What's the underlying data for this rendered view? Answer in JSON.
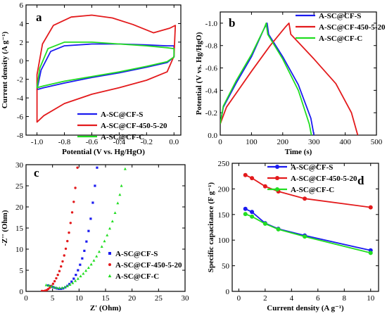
{
  "colors": {
    "blue": "#1b1bf0",
    "red": "#e31a1c",
    "green": "#22dd22",
    "axis": "#000000"
  },
  "chart_data": [
    {
      "panel": "a",
      "type": "line",
      "xlabel": "Potential (V vs. Hg/HgO)",
      "ylabel": "Current density (A g⁻¹)",
      "xlim": [
        -1.08,
        0.05
      ],
      "ylim": [
        -8,
        6
      ],
      "xticks": [
        -1.0,
        -0.8,
        -0.6,
        -0.4,
        -0.2,
        0.0
      ],
      "xtick_labels": [
        "-1.0",
        "-0.8",
        "-0.6",
        "-0.4",
        "-0.2",
        "0.0"
      ],
      "yticks": [
        -8,
        -6,
        -4,
        -2,
        0,
        2,
        4,
        6
      ],
      "ytick_labels": [
        "-8",
        "-6",
        "-4",
        "-2",
        "0",
        "2",
        "4",
        "6"
      ],
      "legend_position": "bottom-right",
      "series": [
        {
          "name": "A-SC@CF-S",
          "color": "#1b1bf0",
          "closed": true,
          "points": [
            [
              -1.0,
              -3.1
            ],
            [
              -0.95,
              -2.9
            ],
            [
              -0.8,
              -2.4
            ],
            [
              -0.6,
              -1.8
            ],
            [
              -0.4,
              -1.3
            ],
            [
              -0.2,
              -0.7
            ],
            [
              -0.05,
              -0.2
            ],
            [
              0.0,
              0.4
            ],
            [
              0.0,
              1.6
            ],
            [
              -0.05,
              1.6
            ],
            [
              -0.2,
              1.7
            ],
            [
              -0.4,
              1.8
            ],
            [
              -0.6,
              1.8
            ],
            [
              -0.8,
              1.6
            ],
            [
              -0.9,
              1.0
            ],
            [
              -0.97,
              -1.0
            ],
            [
              -1.0,
              -3.1
            ]
          ]
        },
        {
          "name": "A-SC@CF-450-5-20",
          "color": "#e31a1c",
          "closed": true,
          "points": [
            [
              -1.0,
              -6.6
            ],
            [
              -0.95,
              -5.9
            ],
            [
              -0.8,
              -4.6
            ],
            [
              -0.6,
              -3.6
            ],
            [
              -0.4,
              -2.9
            ],
            [
              -0.2,
              -2.1
            ],
            [
              -0.05,
              -1.2
            ],
            [
              0.0,
              0.5
            ],
            [
              0.01,
              3.8
            ],
            [
              -0.03,
              3.5
            ],
            [
              -0.15,
              3.0
            ],
            [
              -0.3,
              3.9
            ],
            [
              -0.45,
              4.6
            ],
            [
              -0.6,
              4.9
            ],
            [
              -0.75,
              4.7
            ],
            [
              -0.88,
              3.8
            ],
            [
              -0.96,
              1.8
            ],
            [
              -1.0,
              -1.5
            ],
            [
              -1.0,
              -6.6
            ]
          ]
        },
        {
          "name": "A-SC@CF-C",
          "color": "#22dd22",
          "closed": true,
          "points": [
            [
              -1.0,
              -2.9
            ],
            [
              -0.95,
              -2.7
            ],
            [
              -0.8,
              -2.2
            ],
            [
              -0.6,
              -1.7
            ],
            [
              -0.4,
              -1.2
            ],
            [
              -0.2,
              -0.6
            ],
            [
              -0.05,
              -0.1
            ],
            [
              0.0,
              0.4
            ],
            [
              0.0,
              1.3
            ],
            [
              -0.05,
              1.4
            ],
            [
              -0.2,
              1.6
            ],
            [
              -0.4,
              1.8
            ],
            [
              -0.6,
              2.0
            ],
            [
              -0.8,
              2.0
            ],
            [
              -0.92,
              1.3
            ],
            [
              -0.98,
              -0.8
            ],
            [
              -1.0,
              -2.9
            ]
          ]
        }
      ]
    },
    {
      "panel": "b",
      "type": "line",
      "xlabel": "Time (s)",
      "ylabel": "Potential (V vs. Hg/HgO)",
      "xlim": [
        0,
        500
      ],
      "ylim": [
        0,
        -1.1
      ],
      "xticks": [
        0,
        100,
        200,
        300,
        400,
        500
      ],
      "xtick_labels": [
        "0",
        "100",
        "200",
        "300",
        "400",
        "500"
      ],
      "yticks": [
        0.0,
        -0.2,
        -0.4,
        -0.6,
        -0.8,
        -1.0
      ],
      "ytick_labels": [
        "0.0",
        "-0.2",
        "-0.4",
        "-0.6",
        "-0.8",
        "-1.0"
      ],
      "legend_position": "top-right",
      "series": [
        {
          "name": "A-SC@CF-S",
          "color": "#1b1bf0",
          "points": [
            [
              0,
              -0.1
            ],
            [
              10,
              -0.25
            ],
            [
              50,
              -0.46
            ],
            [
              100,
              -0.7
            ],
            [
              140,
              -0.95
            ],
            [
              150,
              -1.0
            ],
            [
              155,
              -0.9
            ],
            [
              200,
              -0.7
            ],
            [
              250,
              -0.45
            ],
            [
              290,
              -0.15
            ],
            [
              300,
              0.0
            ]
          ]
        },
        {
          "name": "A-SC@CF-450-5-20",
          "color": "#e31a1c",
          "points": [
            [
              0,
              -0.1
            ],
            [
              20,
              -0.25
            ],
            [
              100,
              -0.57
            ],
            [
              160,
              -0.8
            ],
            [
              210,
              -0.97
            ],
            [
              220,
              -1.0
            ],
            [
              226,
              -0.9
            ],
            [
              300,
              -0.68
            ],
            [
              370,
              -0.46
            ],
            [
              420,
              -0.2
            ],
            [
              440,
              0.0
            ]
          ]
        },
        {
          "name": "A-SC@CF-C",
          "color": "#22dd22",
          "points": [
            [
              0,
              -0.1
            ],
            [
              10,
              -0.26
            ],
            [
              50,
              -0.48
            ],
            [
              100,
              -0.72
            ],
            [
              140,
              -0.95
            ],
            [
              147,
              -1.0
            ],
            [
              152,
              -0.9
            ],
            [
              200,
              -0.68
            ],
            [
              250,
              -0.4
            ],
            [
              285,
              -0.1
            ],
            [
              292,
              0.0
            ]
          ]
        }
      ]
    },
    {
      "panel": "c",
      "type": "scatter",
      "xlabel": "Z' (Ohm)",
      "ylabel": "-Z'' (Ohm)",
      "xlim": [
        0,
        30
      ],
      "ylim": [
        0,
        30
      ],
      "xticks": [
        0,
        5,
        10,
        15,
        20,
        25,
        30
      ],
      "xtick_labels": [
        "0",
        "5",
        "10",
        "15",
        "20",
        "25",
        "30"
      ],
      "yticks": [
        0,
        5,
        10,
        15,
        20,
        25,
        30
      ],
      "ytick_labels": [
        "0",
        "5",
        "10",
        "15",
        "20",
        "25",
        "30"
      ],
      "legend_position": "bottom-right",
      "series": [
        {
          "name": "A-SC@CF-S",
          "color": "#1b1bf0",
          "marker": "square",
          "points": [
            [
              4.2,
              1.4
            ],
            [
              4.6,
              1.25
            ],
            [
              5.0,
              1.05
            ],
            [
              5.4,
              0.85
            ],
            [
              5.8,
              0.7
            ],
            [
              6.2,
              0.6
            ],
            [
              6.6,
              0.6
            ],
            [
              7.0,
              0.7
            ],
            [
              7.4,
              0.95
            ],
            [
              7.8,
              1.3
            ],
            [
              8.2,
              1.75
            ],
            [
              8.6,
              2.3
            ],
            [
              9.0,
              3.0
            ],
            [
              9.4,
              3.9
            ],
            [
              9.8,
              5.0
            ],
            [
              10.2,
              6.3
            ],
            [
              10.6,
              7.8
            ],
            [
              11.0,
              9.6
            ],
            [
              11.4,
              11.8
            ],
            [
              11.8,
              14.3
            ],
            [
              12.2,
              17.2
            ],
            [
              12.6,
              21.0
            ],
            [
              13.0,
              25.0
            ],
            [
              13.4,
              29.3
            ]
          ]
        },
        {
          "name": "A-SC@CF-450-5-20",
          "color": "#e31a1c",
          "marker": "circle",
          "points": [
            [
              3.0,
              0.1
            ],
            [
              3.3,
              0.05
            ],
            [
              3.6,
              0.15
            ],
            [
              3.9,
              0.3
            ],
            [
              4.2,
              0.55
            ],
            [
              4.5,
              0.9
            ],
            [
              4.8,
              1.3
            ],
            [
              5.1,
              1.8
            ],
            [
              5.4,
              2.4
            ],
            [
              5.7,
              3.1
            ],
            [
              6.0,
              3.9
            ],
            [
              6.3,
              4.8
            ],
            [
              6.6,
              5.9
            ],
            [
              6.9,
              7.1
            ],
            [
              7.2,
              8.5
            ],
            [
              7.5,
              10.1
            ],
            [
              7.8,
              11.9
            ],
            [
              8.1,
              13.9
            ],
            [
              8.4,
              16.2
            ],
            [
              8.7,
              18.7
            ],
            [
              9.0,
              21.2
            ],
            [
              9.3,
              24.5
            ],
            [
              9.7,
              29.3
            ]
          ]
        },
        {
          "name": "A-SC@CF-C",
          "color": "#22dd22",
          "marker": "triangle",
          "points": [
            [
              3.8,
              1.5
            ],
            [
              4.3,
              1.4
            ],
            [
              4.8,
              1.2
            ],
            [
              5.3,
              1.0
            ],
            [
              5.8,
              0.85
            ],
            [
              6.3,
              0.8
            ],
            [
              6.8,
              0.85
            ],
            [
              7.3,
              1.0
            ],
            [
              7.8,
              1.25
            ],
            [
              8.3,
              1.6
            ],
            [
              8.8,
              2.0
            ],
            [
              9.3,
              2.5
            ],
            [
              9.8,
              3.0
            ],
            [
              10.3,
              3.6
            ],
            [
              10.8,
              4.2
            ],
            [
              11.3,
              4.9
            ],
            [
              11.8,
              5.6
            ],
            [
              12.3,
              6.4
            ],
            [
              12.8,
              7.3
            ],
            [
              13.3,
              8.3
            ],
            [
              13.8,
              9.4
            ],
            [
              14.3,
              10.6
            ],
            [
              14.8,
              11.9
            ],
            [
              15.3,
              13.3
            ],
            [
              15.8,
              14.9
            ],
            [
              16.3,
              16.6
            ],
            [
              16.8,
              18.6
            ],
            [
              17.3,
              20.9
            ],
            [
              17.7,
              22.9
            ],
            [
              18.0,
              25.0
            ],
            [
              18.7,
              29.0
            ]
          ]
        }
      ]
    },
    {
      "panel": "d",
      "type": "line",
      "xlabel": "Current density (A g⁻¹)",
      "ylabel": "Specific capacitance (F g⁻¹)",
      "xlim": [
        -0.5,
        10.6
      ],
      "ylim": [
        0,
        250
      ],
      "xticks": [
        0,
        2,
        4,
        6,
        8,
        10
      ],
      "xtick_labels": [
        "0",
        "2",
        "4",
        "6",
        "8",
        "10"
      ],
      "yticks": [
        0,
        50,
        100,
        150,
        200,
        250
      ],
      "ytick_labels": [
        "0",
        "50",
        "100",
        "150",
        "200",
        "250"
      ],
      "legend_position": "top-right",
      "series": [
        {
          "name": "A-SC@CF-S",
          "color": "#1b1bf0",
          "x": [
            0.5,
            1,
            2,
            3,
            5,
            10
          ],
          "y": [
            161,
            155,
            133,
            122,
            109,
            80
          ]
        },
        {
          "name": "A-SC@CF-450-5-20",
          "color": "#e31a1c",
          "x": [
            0.5,
            1,
            2,
            3,
            5,
            10
          ],
          "y": [
            227,
            221,
            205,
            195,
            181,
            164
          ]
        },
        {
          "name": "A-SC@CF-C",
          "color": "#22dd22",
          "x": [
            0.5,
            1,
            2,
            3,
            5,
            10
          ],
          "y": [
            151,
            146,
            132,
            121,
            107,
            75
          ]
        }
      ]
    }
  ]
}
